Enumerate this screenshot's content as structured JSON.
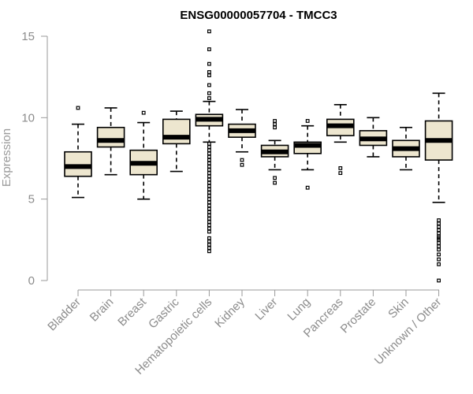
{
  "chart_data": {
    "type": "box",
    "title": "ENSG00000057704 - TMCC3",
    "xlabel": "",
    "ylabel": "Expression",
    "ylim": [
      0,
      15
    ],
    "yticks": [
      0,
      5,
      10,
      15
    ],
    "box_color": "#ede6cf",
    "categories": [
      "Bladder",
      "Brain",
      "Breast",
      "Gastric",
      "Hematopoietic cells",
      "Kidney",
      "Liver",
      "Lung",
      "Pancreas",
      "Prostate",
      "Skin",
      "Unknown / Other"
    ],
    "boxes": [
      {
        "category": "Bladder",
        "low": 5.1,
        "q1": 6.4,
        "median": 7.0,
        "q3": 7.9,
        "high": 9.6,
        "outliers": [
          10.6
        ]
      },
      {
        "category": "Brain",
        "low": 6.5,
        "q1": 8.2,
        "median": 8.6,
        "q3": 9.4,
        "high": 10.6,
        "outliers": []
      },
      {
        "category": "Breast",
        "low": 5.0,
        "q1": 6.5,
        "median": 7.2,
        "q3": 8.0,
        "high": 9.7,
        "outliers": [
          10.3
        ]
      },
      {
        "category": "Gastric",
        "low": 6.7,
        "q1": 8.4,
        "median": 8.8,
        "q3": 9.9,
        "high": 10.4,
        "outliers": []
      },
      {
        "category": "Hematopoietic cells",
        "low": 8.5,
        "q1": 9.5,
        "median": 9.9,
        "q3": 10.2,
        "high": 11.0,
        "outliers": [
          15.3,
          14.2,
          13.3,
          12.8,
          12.6,
          12.0,
          11.5,
          11.2,
          8.4,
          8.2,
          8.0,
          7.8,
          7.6,
          7.4,
          7.2,
          7.0,
          6.8,
          6.6,
          6.4,
          6.2,
          6.0,
          5.8,
          5.6,
          5.4,
          5.2,
          5.0,
          4.8,
          4.6,
          4.4,
          4.2,
          4.0,
          3.8,
          3.6,
          3.4,
          3.2,
          3.0,
          2.6,
          2.4,
          2.2,
          2.0,
          1.8
        ]
      },
      {
        "category": "Kidney",
        "low": 7.9,
        "q1": 8.8,
        "median": 9.2,
        "q3": 9.6,
        "high": 10.5,
        "outliers": [
          7.4,
          7.1
        ]
      },
      {
        "category": "Liver",
        "low": 6.8,
        "q1": 7.6,
        "median": 7.9,
        "q3": 8.3,
        "high": 8.6,
        "outliers": [
          9.8,
          9.6,
          9.4,
          6.3,
          6.0
        ]
      },
      {
        "category": "Lung",
        "low": 6.8,
        "q1": 7.8,
        "median": 8.3,
        "q3": 8.5,
        "high": 9.5,
        "outliers": [
          9.8,
          5.7
        ]
      },
      {
        "category": "Pancreas",
        "low": 8.5,
        "q1": 8.9,
        "median": 9.5,
        "q3": 9.9,
        "high": 10.8,
        "outliers": [
          6.9,
          6.6
        ]
      },
      {
        "category": "Prostate",
        "low": 7.6,
        "q1": 8.3,
        "median": 8.7,
        "q3": 9.2,
        "high": 10.0,
        "outliers": []
      },
      {
        "category": "Skin",
        "low": 6.8,
        "q1": 7.6,
        "median": 8.1,
        "q3": 8.6,
        "high": 9.4,
        "outliers": []
      },
      {
        "category": "Unknown / Other",
        "low": 4.8,
        "q1": 7.4,
        "median": 8.6,
        "q3": 9.8,
        "high": 11.5,
        "outliers": [
          3.7,
          3.5,
          3.3,
          3.1,
          2.9,
          2.7,
          2.6,
          2.5,
          2.3,
          2.1,
          1.9,
          1.6,
          1.3,
          1.0,
          0.0
        ]
      }
    ]
  }
}
